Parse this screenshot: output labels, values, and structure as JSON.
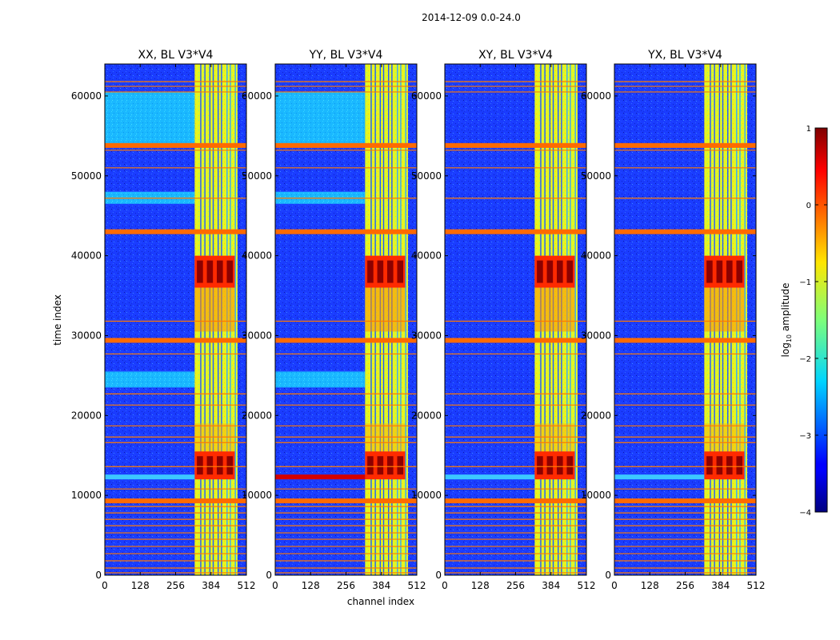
{
  "chart_data": {
    "type": "heatmap",
    "suptitle": "2014-12-09 0.0-24.0",
    "xlabel": "channel index",
    "ylabel": "time index",
    "xlim": [
      0,
      512
    ],
    "ylim": [
      0,
      64000
    ],
    "xticks": [
      0,
      128,
      256,
      384,
      512
    ],
    "yticks": [
      0,
      10000,
      20000,
      30000,
      40000,
      50000,
      60000
    ],
    "colorbar": {
      "label_prefix": "log",
      "label_sub": "10",
      "label_suffix": " amplitude",
      "range": [
        -4,
        1
      ],
      "ticks": [
        1,
        0,
        -1,
        -2,
        -3,
        -4
      ],
      "tick_labels": [
        "1",
        "0",
        "−1",
        "−2",
        "−3",
        "−4"
      ],
      "colormap": "jet"
    },
    "panels": [
      {
        "title": "XX, BL V3*V4",
        "cyan_blocks": [
          [
            54000,
            60500
          ],
          [
            46500,
            48000
          ],
          [
            23500,
            25500
          ]
        ],
        "bright_band_channels": [
          325,
          480
        ]
      },
      {
        "title": "YY, BL V3*V4",
        "cyan_blocks": [
          [
            54000,
            60500
          ],
          [
            46500,
            48000
          ],
          [
            23500,
            25500
          ]
        ],
        "bright_band_channels": [
          325,
          480
        ]
      },
      {
        "title": "XY, BL V3*V4",
        "cyan_blocks": [],
        "bright_band_channels": [
          325,
          480
        ]
      },
      {
        "title": "YX, BL V3*V4",
        "cyan_blocks": [],
        "bright_band_channels": [
          325,
          480
        ]
      }
    ],
    "rfi_rows_log_amplitude_0": [
      43000,
      29400,
      9300,
      53800
    ],
    "strong_region_log_amplitude_1": [
      [
        36000,
        40000
      ],
      [
        12000,
        15500
      ]
    ]
  }
}
